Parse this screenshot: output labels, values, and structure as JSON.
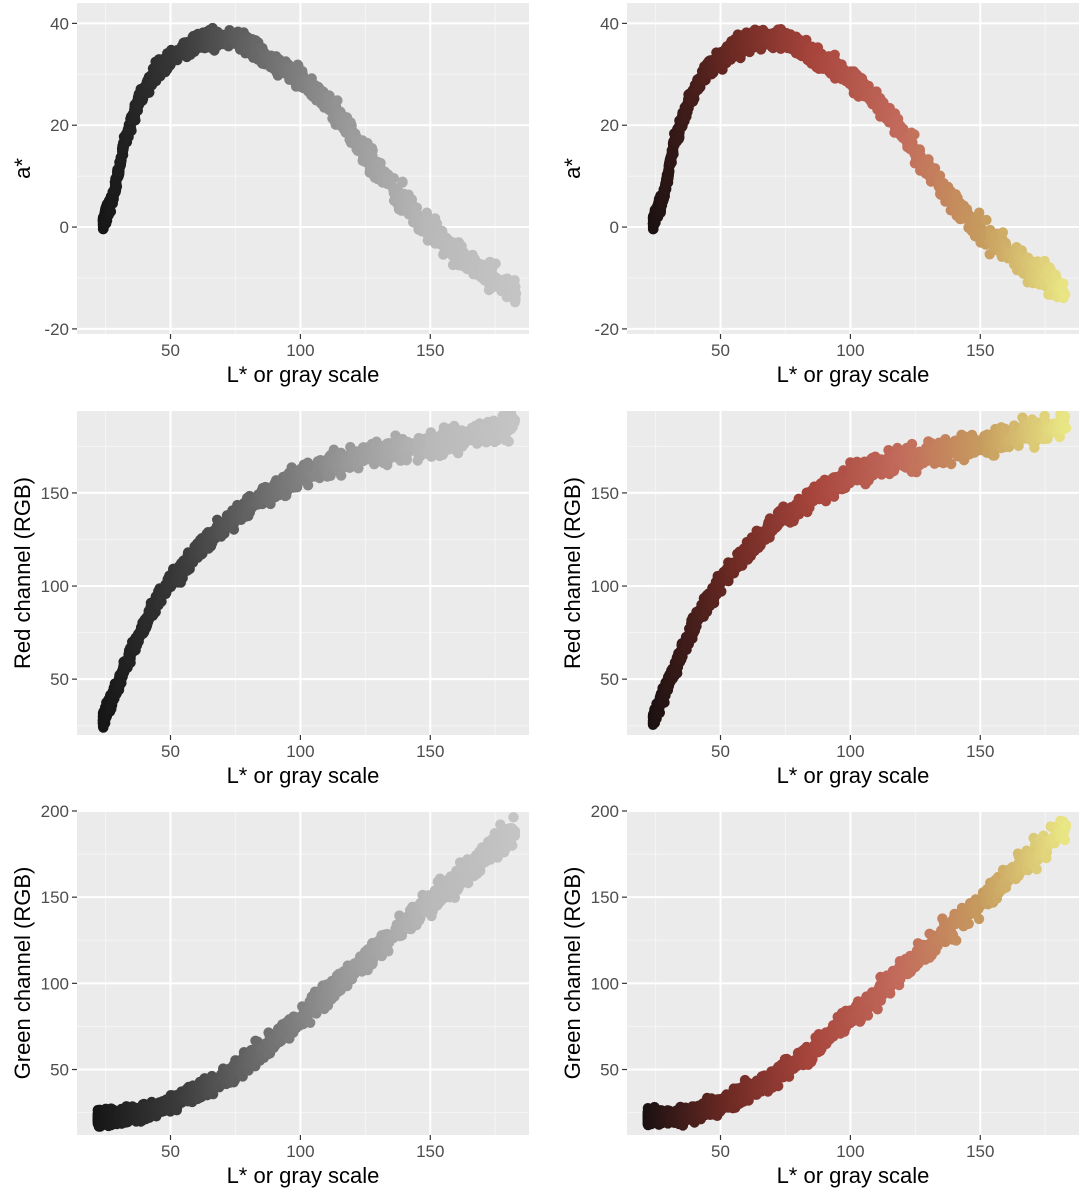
{
  "figure": {
    "background": "#ffffff",
    "panel_background": "#ebebeb",
    "major_grid_color": "#ffffff",
    "minor_grid_color": "#f5f5f5",
    "gray_palette": [
      "#161616",
      "#3c3c3c",
      "#6e6e6e",
      "#9a9a9a",
      "#b9b9b9",
      "#c4c4c4"
    ],
    "color_palette": [
      "#1b1212",
      "#6e2a24",
      "#a8463d",
      "#c26a5c",
      "#c69b5e",
      "#e9e684"
    ]
  },
  "chart_data": [
    {
      "id": "a-gray",
      "type": "scatter",
      "color_mode": "gray",
      "xlabel": "L* or gray scale",
      "ylabel": "a*",
      "xlim": [
        14,
        188
      ],
      "ylim": [
        -21,
        44
      ],
      "xticks": [
        50,
        100,
        150
      ],
      "xtick_labels": [
        "50",
        "100",
        "150"
      ],
      "yticks": [
        -20,
        0,
        20,
        40
      ],
      "ytick_labels": [
        "-20",
        "0",
        "20",
        "40"
      ],
      "grid": true,
      "legend": "none",
      "trend": [
        [
          24,
          1
        ],
        [
          28,
          6
        ],
        [
          32,
          16
        ],
        [
          38,
          25
        ],
        [
          45,
          31
        ],
        [
          55,
          35
        ],
        [
          65,
          37
        ],
        [
          75,
          37
        ],
        [
          85,
          34
        ],
        [
          95,
          31
        ],
        [
          105,
          27
        ],
        [
          115,
          22
        ],
        [
          125,
          15
        ],
        [
          135,
          8
        ],
        [
          145,
          2
        ],
        [
          155,
          -3
        ],
        [
          165,
          -7
        ],
        [
          175,
          -10
        ],
        [
          183,
          -13
        ]
      ]
    },
    {
      "id": "a-color",
      "type": "scatter",
      "color_mode": "color",
      "xlabel": "L* or gray scale",
      "ylabel": "a*",
      "xlim": [
        14,
        188
      ],
      "ylim": [
        -21,
        44
      ],
      "xticks": [
        50,
        100,
        150
      ],
      "xtick_labels": [
        "50",
        "100",
        "150"
      ],
      "yticks": [
        -20,
        0,
        20,
        40
      ],
      "ytick_labels": [
        "-20",
        "0",
        "20",
        "40"
      ],
      "grid": true,
      "legend": "none",
      "trend": [
        [
          24,
          1
        ],
        [
          28,
          6
        ],
        [
          32,
          16
        ],
        [
          38,
          25
        ],
        [
          45,
          31
        ],
        [
          55,
          35
        ],
        [
          65,
          37
        ],
        [
          75,
          37
        ],
        [
          85,
          34
        ],
        [
          95,
          31
        ],
        [
          105,
          27
        ],
        [
          115,
          22
        ],
        [
          125,
          15
        ],
        [
          135,
          8
        ],
        [
          145,
          2
        ],
        [
          155,
          -3
        ],
        [
          165,
          -7
        ],
        [
          175,
          -10
        ],
        [
          183,
          -13
        ]
      ]
    },
    {
      "id": "red-gray",
      "type": "scatter",
      "color_mode": "gray",
      "xlabel": "L* or gray scale",
      "ylabel": "Red channel (RGB)",
      "xlim": [
        14,
        188
      ],
      "ylim": [
        20,
        194
      ],
      "xticks": [
        50,
        100,
        150
      ],
      "xtick_labels": [
        "50",
        "100",
        "150"
      ],
      "yticks": [
        50,
        100,
        150
      ],
      "ytick_labels": [
        "50",
        "100",
        "150"
      ],
      "grid": true,
      "legend": "none",
      "trend": [
        [
          24,
          28
        ],
        [
          30,
          48
        ],
        [
          36,
          68
        ],
        [
          42,
          85
        ],
        [
          50,
          102
        ],
        [
          60,
          118
        ],
        [
          70,
          132
        ],
        [
          80,
          143
        ],
        [
          90,
          152
        ],
        [
          100,
          159
        ],
        [
          110,
          164
        ],
        [
          120,
          168
        ],
        [
          130,
          171
        ],
        [
          140,
          174
        ],
        [
          150,
          176
        ],
        [
          160,
          179
        ],
        [
          170,
          182
        ],
        [
          183,
          187
        ]
      ]
    },
    {
      "id": "red-color",
      "type": "scatter",
      "color_mode": "color",
      "xlabel": "L* or gray scale",
      "ylabel": "Red channel (RGB)",
      "xlim": [
        14,
        188
      ],
      "ylim": [
        20,
        194
      ],
      "xticks": [
        50,
        100,
        150
      ],
      "xtick_labels": [
        "50",
        "100",
        "150"
      ],
      "yticks": [
        50,
        100,
        150
      ],
      "ytick_labels": [
        "50",
        "100",
        "150"
      ],
      "grid": true,
      "legend": "none",
      "trend": [
        [
          24,
          28
        ],
        [
          30,
          48
        ],
        [
          36,
          68
        ],
        [
          42,
          85
        ],
        [
          50,
          102
        ],
        [
          60,
          118
        ],
        [
          70,
          132
        ],
        [
          80,
          143
        ],
        [
          90,
          152
        ],
        [
          100,
          159
        ],
        [
          110,
          164
        ],
        [
          120,
          168
        ],
        [
          130,
          171
        ],
        [
          140,
          174
        ],
        [
          150,
          176
        ],
        [
          160,
          179
        ],
        [
          170,
          182
        ],
        [
          183,
          187
        ]
      ]
    },
    {
      "id": "green-gray",
      "type": "scatter",
      "color_mode": "gray",
      "xlabel": "L* or gray scale",
      "ylabel": "Green channel (RGB)",
      "xlim": [
        14,
        188
      ],
      "ylim": [
        12,
        200
      ],
      "xticks": [
        50,
        100,
        150
      ],
      "xtick_labels": [
        "50",
        "100",
        "150"
      ],
      "yticks": [
        50,
        100,
        150,
        200
      ],
      "ytick_labels": [
        "50",
        "100",
        "150",
        "200"
      ],
      "grid": true,
      "legend": "none",
      "trend": [
        [
          22,
          22
        ],
        [
          30,
          22
        ],
        [
          40,
          25
        ],
        [
          50,
          30
        ],
        [
          60,
          37
        ],
        [
          70,
          45
        ],
        [
          80,
          55
        ],
        [
          90,
          67
        ],
        [
          100,
          80
        ],
        [
          110,
          93
        ],
        [
          120,
          107
        ],
        [
          130,
          120
        ],
        [
          140,
          134
        ],
        [
          150,
          147
        ],
        [
          160,
          160
        ],
        [
          170,
          173
        ],
        [
          183,
          191
        ]
      ]
    },
    {
      "id": "green-color",
      "type": "scatter",
      "color_mode": "color",
      "xlabel": "L* or gray scale",
      "ylabel": "Green channel (RGB)",
      "xlim": [
        14,
        188
      ],
      "ylim": [
        12,
        200
      ],
      "xticks": [
        50,
        100,
        150
      ],
      "xtick_labels": [
        "50",
        "100",
        "150"
      ],
      "yticks": [
        50,
        100,
        150,
        200
      ],
      "ytick_labels": [
        "50",
        "100",
        "150",
        "200"
      ],
      "grid": true,
      "legend": "none",
      "trend": [
        [
          22,
          22
        ],
        [
          30,
          22
        ],
        [
          40,
          25
        ],
        [
          50,
          30
        ],
        [
          60,
          37
        ],
        [
          70,
          45
        ],
        [
          80,
          55
        ],
        [
          90,
          67
        ],
        [
          100,
          80
        ],
        [
          110,
          93
        ],
        [
          120,
          107
        ],
        [
          130,
          120
        ],
        [
          140,
          134
        ],
        [
          150,
          147
        ],
        [
          160,
          160
        ],
        [
          170,
          173
        ],
        [
          183,
          191
        ]
      ]
    }
  ]
}
